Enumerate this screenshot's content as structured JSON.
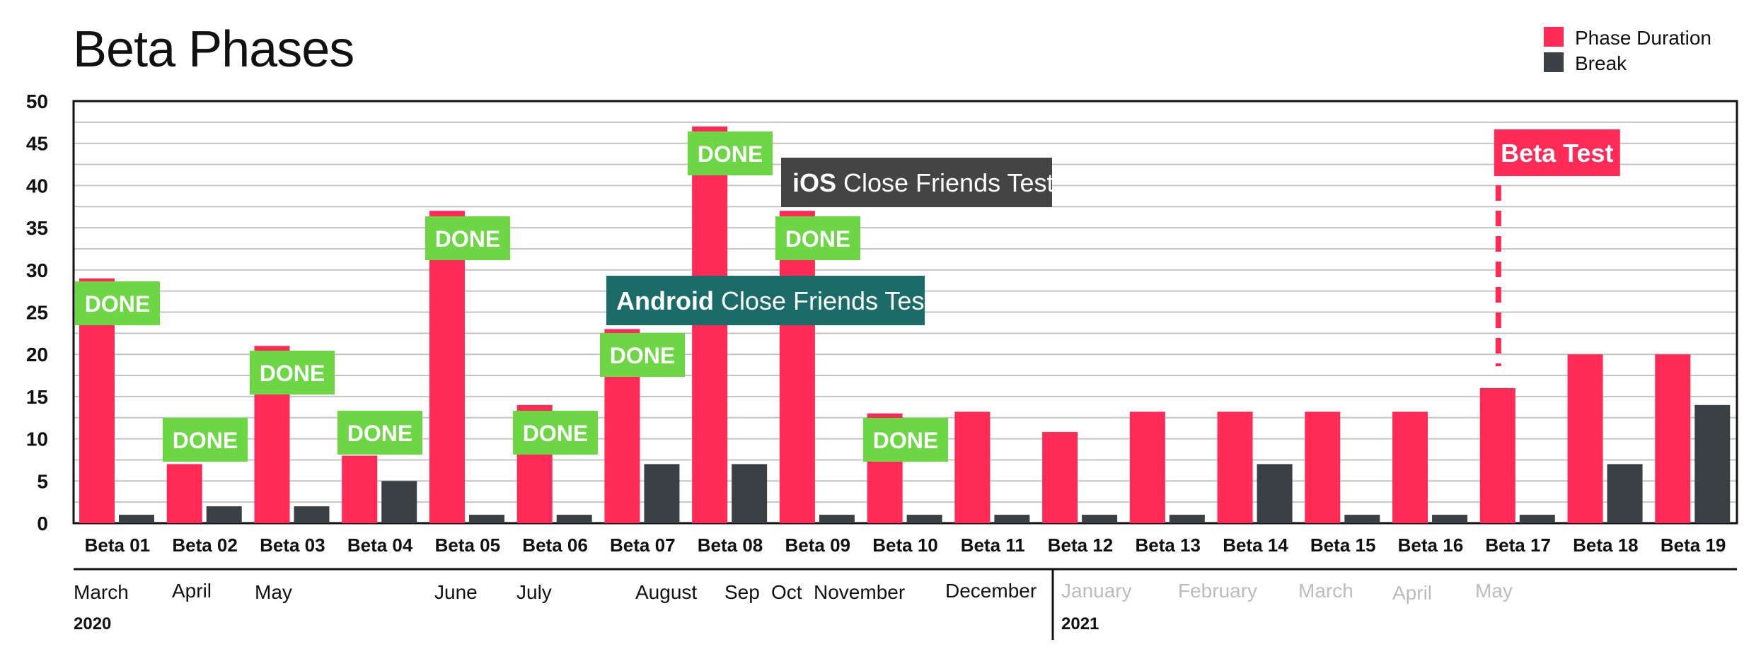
{
  "chart_data": {
    "type": "bar",
    "title": "Beta Phases",
    "categories": [
      "Beta 01",
      "Beta 02",
      "Beta 03",
      "Beta 04",
      "Beta 05",
      "Beta 06",
      "Beta 07",
      "Beta 08",
      "Beta 09",
      "Beta 10",
      "Beta 11",
      "Beta 12",
      "Beta 13",
      "Beta 14",
      "Beta 15",
      "Beta 16",
      "Beta 17",
      "Beta 18",
      "Beta 19"
    ],
    "series": [
      {
        "name": "Phase Duration",
        "color": "#ff2a55",
        "values": [
          29,
          7,
          21,
          8,
          37,
          14,
          23,
          47,
          37,
          13,
          13.2,
          10.8,
          13.2,
          13.2,
          13.2,
          13.2,
          16,
          20,
          20
        ]
      },
      {
        "name": "Break",
        "color": "#3a4043",
        "values": [
          1,
          2,
          2,
          5,
          1,
          1,
          7,
          7,
          1,
          1,
          1,
          1,
          1,
          7,
          1,
          1,
          1,
          7,
          14
        ]
      }
    ],
    "ylim": [
      0,
      50
    ],
    "yticks": [
      "0",
      "5",
      "10",
      "15",
      "20",
      "25",
      "30",
      "35",
      "40",
      "45",
      "50"
    ],
    "ytick_values": [
      0,
      5,
      10,
      15,
      20,
      25,
      30,
      35,
      40,
      45,
      50
    ],
    "grid": true,
    "legend_position": "top-right",
    "done_label": "DONE",
    "done_color": "#6cd645",
    "done_categories": [
      0,
      1,
      2,
      3,
      4,
      5,
      6,
      7,
      8,
      9
    ],
    "annotations": {
      "ios": {
        "bold": "iOS",
        "text": " Close Friends Test",
        "color": "#444444"
      },
      "android": {
        "bold": "Android",
        "text": " Close Friends Test",
        "color": "#1b6b68"
      },
      "beta_test": {
        "text": "Beta Test",
        "color": "#ff2a55",
        "category": 16
      }
    },
    "timeline": {
      "months": [
        {
          "label": "March",
          "faded": false
        },
        {
          "label": "April",
          "faded": false
        },
        {
          "label": "May",
          "faded": false
        },
        {
          "label": "June",
          "faded": false
        },
        {
          "label": "July",
          "faded": false
        },
        {
          "label": "August",
          "faded": false
        },
        {
          "label": "Sep",
          "faded": false
        },
        {
          "label": "Oct",
          "faded": false
        },
        {
          "label": "November",
          "faded": false
        },
        {
          "label": "December",
          "faded": false
        },
        {
          "label": "January",
          "faded": true
        },
        {
          "label": "February",
          "faded": true
        },
        {
          "label": "March",
          "faded": true
        },
        {
          "label": "April",
          "faded": true
        },
        {
          "label": "May",
          "faded": true
        }
      ],
      "years": [
        "2020",
        "2021"
      ]
    }
  }
}
